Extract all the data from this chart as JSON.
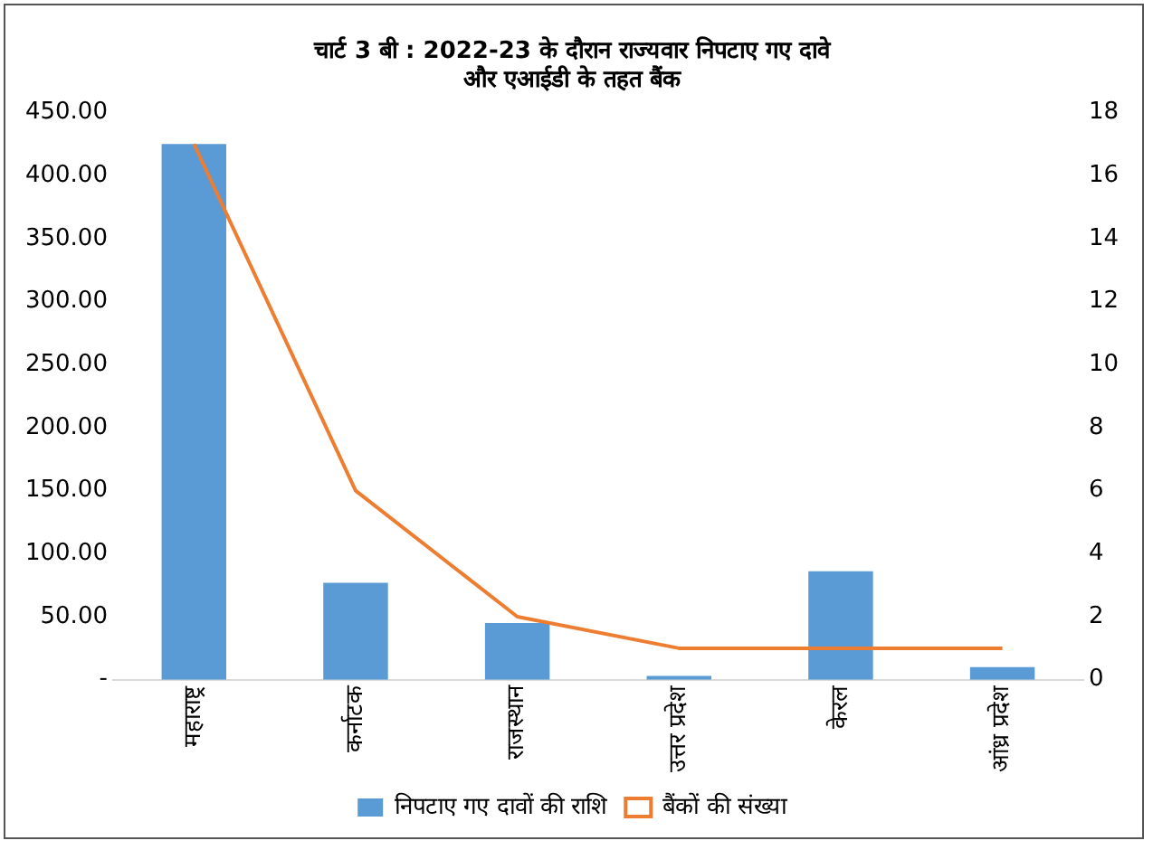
{
  "chart_data": {
    "type": "bar",
    "title": "चार्ट 3 बी : 2022-23 के दौरान राज्यवार निपटाए गए दावे\nऔर एआईडी के तहत बैंक",
    "categories": [
      "महाराष्ट्र",
      "कर्नाटक",
      "राजस्थान",
      "उत्तर प्रदेश",
      "केरल",
      "आंध्र प्रदेश"
    ],
    "series": [
      {
        "name": "निपटाए गए दावों की राशि",
        "color": "#5b9bd5",
        "values": [
          425,
          77,
          45,
          3,
          86,
          10
        ]
      },
      {
        "name": "बैंकों की संख्या",
        "type": "line",
        "axis": "y2",
        "color": "#ed7d31",
        "values": [
          17,
          6,
          2,
          1,
          1,
          1
        ]
      }
    ],
    "ylim": [
      0,
      450
    ],
    "yticks": [
      {
        "value": 0,
        "label": "-"
      },
      {
        "value": 50,
        "label": "50.00"
      },
      {
        "value": 100,
        "label": "100.00"
      },
      {
        "value": 150,
        "label": "150.00"
      },
      {
        "value": 200,
        "label": "200.00"
      },
      {
        "value": 250,
        "label": "250.00"
      },
      {
        "value": 300,
        "label": "300.00"
      },
      {
        "value": 350,
        "label": "350.00"
      },
      {
        "value": 400,
        "label": "400.00"
      },
      {
        "value": 450,
        "label": "450.00"
      }
    ],
    "y2lim": [
      0,
      18
    ],
    "y2ticks": [
      0,
      2,
      4,
      6,
      8,
      10,
      12,
      14,
      16,
      18
    ],
    "grid": false,
    "legend": "bottom",
    "marker": "none"
  }
}
